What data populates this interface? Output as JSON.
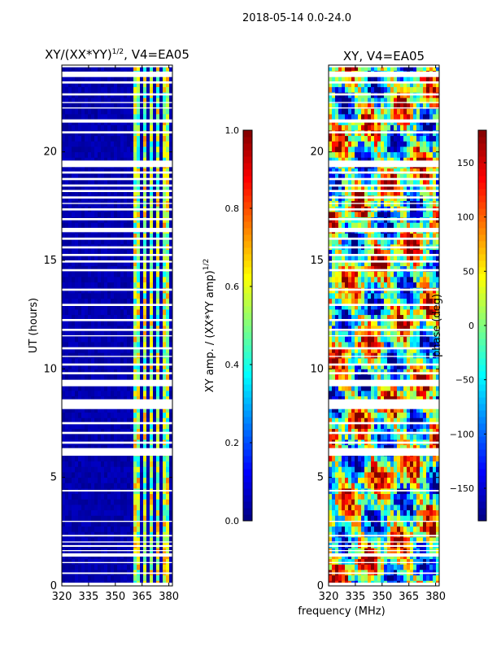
{
  "figure": {
    "suptitle": "2018-05-14 0.0-24.0",
    "shared_xlabel": "frequency (MHz)"
  },
  "colormap": [
    "#00007f",
    "#0000ff",
    "#007fff",
    "#00ffff",
    "#7fff7f",
    "#ffff00",
    "#ff7f00",
    "#ff0000",
    "#7f0000"
  ],
  "chart_data": [
    {
      "type": "heatmap",
      "title_base": "XY/(XX*YY)",
      "title_sup": "1/2",
      "title_tail": ", V4=EA05",
      "xlabel": "",
      "ylabel": "UT (hours)",
      "xlim": [
        320,
        382
      ],
      "ylim": [
        0,
        24
      ],
      "xticks": [
        320,
        335,
        350,
        365,
        380
      ],
      "yticks": [
        0,
        5,
        10,
        15,
        20
      ],
      "colorbar": {
        "label_base": "XY amp. / (XX*YY amp)",
        "label_sup": "1/2",
        "range": [
          0.0,
          1.0
        ],
        "ticks": [
          "0.0",
          "0.2",
          "0.4",
          "0.6",
          "0.8",
          "1.0"
        ]
      },
      "signal_bands_mhz": [
        [
          361,
          364
        ],
        [
          366,
          368
        ],
        [
          369.5,
          371.5
        ],
        [
          372.5,
          375
        ],
        [
          376,
          378
        ],
        [
          379,
          381
        ]
      ],
      "background_value": 0.02,
      "band_value_range": [
        0.35,
        0.75
      ]
    },
    {
      "type": "heatmap",
      "title_base": "XY, V4=EA05",
      "title_sup": "",
      "title_tail": "",
      "xlabel": "frequency (MHz)",
      "ylabel": "",
      "xlim": [
        320,
        382
      ],
      "ylim": [
        0,
        24
      ],
      "xticks": [
        320,
        335,
        350,
        365,
        380
      ],
      "yticks": [
        0,
        5,
        10,
        15,
        20
      ],
      "colorbar": {
        "label_base": "phase (deg)",
        "label_sup": "",
        "range": [
          -180,
          180
        ],
        "ticks": [
          "−150",
          "−100",
          "−50",
          "0",
          "50",
          "100",
          "150"
        ]
      },
      "value_range": [
        -180,
        180
      ]
    }
  ],
  "flagged_time_ranges_hours": [
    [
      0.0,
      0.15
    ],
    [
      0.55,
      0.62
    ],
    [
      1.05,
      1.1
    ],
    [
      1.35,
      1.5
    ],
    [
      1.6,
      1.65
    ],
    [
      1.8,
      1.88
    ],
    [
      2.0,
      2.05
    ],
    [
      2.28,
      2.35
    ],
    [
      2.95,
      3.0
    ],
    [
      4.35,
      4.42
    ],
    [
      6.0,
      6.35
    ],
    [
      6.55,
      6.65
    ],
    [
      7.0,
      7.1
    ],
    [
      7.45,
      7.55
    ],
    [
      8.15,
      8.6
    ],
    [
      9.2,
      9.5
    ],
    [
      9.75,
      9.85
    ],
    [
      10.15,
      10.25
    ],
    [
      10.55,
      10.6
    ],
    [
      10.9,
      11.0
    ],
    [
      11.5,
      11.55
    ],
    [
      11.75,
      11.85
    ],
    [
      12.2,
      12.3
    ],
    [
      12.9,
      13.0
    ],
    [
      13.6,
      13.7
    ],
    [
      14.5,
      14.6
    ],
    [
      14.9,
      15.0
    ],
    [
      15.2,
      15.3
    ],
    [
      15.55,
      15.65
    ],
    [
      15.95,
      16.05
    ],
    [
      16.3,
      16.5
    ],
    [
      16.85,
      16.95
    ],
    [
      17.3,
      17.4
    ],
    [
      17.6,
      17.65
    ],
    [
      17.85,
      17.95
    ],
    [
      18.15,
      18.25
    ],
    [
      18.4,
      18.5
    ],
    [
      18.7,
      18.8
    ],
    [
      19.0,
      19.1
    ],
    [
      19.3,
      19.6
    ],
    [
      20.85,
      20.95
    ],
    [
      21.35,
      21.5
    ],
    [
      22.0,
      22.05
    ],
    [
      22.25,
      22.3
    ],
    [
      22.6,
      22.7
    ],
    [
      23.15,
      23.25
    ],
    [
      23.45,
      23.7
    ],
    [
      23.9,
      24.0
    ]
  ]
}
